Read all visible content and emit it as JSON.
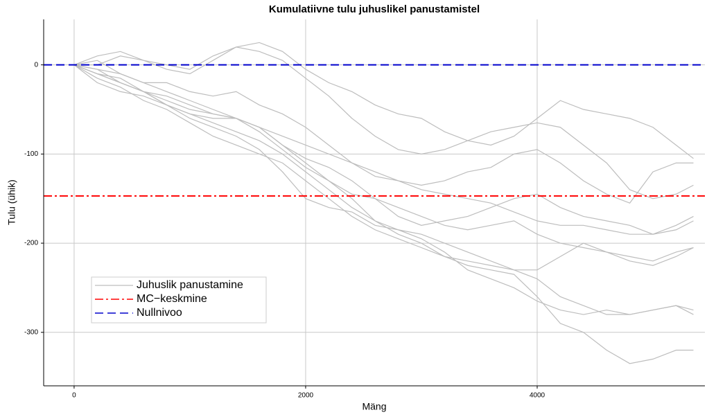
{
  "chart_data": {
    "type": "line",
    "title": "Kumulatiivne tulu juhuslikel panustamistel",
    "x_label": "Mäng",
    "y_label": "Tulu (ühik)",
    "x": [
      0,
      200,
      400,
      600,
      800,
      1000,
      1200,
      1400,
      1600,
      1800,
      2000,
      2200,
      2400,
      2600,
      2800,
      3000,
      3200,
      3400,
      3600,
      3800,
      4000,
      4200,
      4400,
      4600,
      4800,
      5000,
      5200,
      5350
    ],
    "series_name": "Juhuslik panustamine",
    "series_color": "#bdbdbd",
    "series": [
      {
        "values": [
          0,
          10,
          15,
          5,
          0,
          -5,
          10,
          20,
          25,
          15,
          -5,
          -20,
          -30,
          -45,
          -55,
          -60,
          -75,
          -85,
          -90,
          -80,
          -60,
          -40,
          -50,
          -55,
          -60,
          -70,
          -90,
          -105
        ]
      },
      {
        "values": [
          0,
          -5,
          -20,
          -30,
          -40,
          -50,
          -55,
          -60,
          -70,
          -90,
          -110,
          -130,
          -150,
          -175,
          -190,
          -200,
          -215,
          -225,
          -230,
          -235,
          -260,
          -290,
          -300,
          -320,
          -335,
          -330,
          -320,
          -320
        ]
      },
      {
        "values": [
          0,
          -10,
          -15,
          -30,
          -45,
          -60,
          -70,
          -80,
          -95,
          -120,
          -150,
          -160,
          -165,
          -180,
          -185,
          -195,
          -210,
          -230,
          -240,
          -250,
          -265,
          -275,
          -280,
          -275,
          -280,
          -275,
          -270,
          -280
        ]
      },
      {
        "values": [
          0,
          -15,
          -25,
          -40,
          -50,
          -65,
          -80,
          -90,
          -100,
          -110,
          -130,
          -150,
          -170,
          -185,
          -195,
          -205,
          -215,
          -220,
          -225,
          -230,
          -240,
          -260,
          -270,
          -280,
          -280,
          -275,
          -270,
          -275
        ]
      },
      {
        "values": [
          0,
          0,
          10,
          5,
          -5,
          -10,
          5,
          20,
          15,
          5,
          -15,
          -35,
          -60,
          -80,
          -95,
          -100,
          -95,
          -85,
          -75,
          -70,
          -65,
          -70,
          -90,
          -110,
          -140,
          -150,
          -145,
          -135
        ]
      },
      {
        "values": [
          0,
          -5,
          -10,
          -20,
          -30,
          -40,
          -50,
          -60,
          -70,
          -80,
          -90,
          -100,
          -110,
          -120,
          -130,
          -140,
          -145,
          -150,
          -155,
          -165,
          -175,
          -180,
          -180,
          -185,
          -190,
          -190,
          -180,
          -170
        ]
      },
      {
        "values": [
          0,
          -10,
          -20,
          -30,
          -35,
          -45,
          -55,
          -60,
          -75,
          -95,
          -115,
          -130,
          -145,
          -150,
          -160,
          -170,
          -180,
          -185,
          -180,
          -175,
          -190,
          -200,
          -205,
          -210,
          -215,
          -220,
          -210,
          -205
        ]
      },
      {
        "values": [
          0,
          5,
          -10,
          -20,
          -20,
          -30,
          -35,
          -30,
          -45,
          -55,
          -70,
          -90,
          -110,
          -125,
          -130,
          -135,
          -130,
          -120,
          -115,
          -100,
          -95,
          -110,
          -130,
          -145,
          -155,
          -120,
          -110,
          -110
        ]
      },
      {
        "values": [
          0,
          -20,
          -30,
          -35,
          -45,
          -55,
          -60,
          -60,
          -70,
          -90,
          -105,
          -115,
          -130,
          -150,
          -170,
          -180,
          -175,
          -170,
          -160,
          -150,
          -145,
          -160,
          -170,
          -175,
          -180,
          -190,
          -185,
          -175
        ]
      },
      {
        "values": [
          0,
          -10,
          -20,
          -30,
          -45,
          -55,
          -65,
          -75,
          -85,
          -100,
          -120,
          -140,
          -160,
          -175,
          -185,
          -190,
          -200,
          -210,
          -220,
          -230,
          -230,
          -215,
          -200,
          -210,
          -220,
          -225,
          -215,
          -205
        ]
      }
    ],
    "hlines": [
      {
        "name": "MC−keskmine",
        "value": -147,
        "color": "#ff0000",
        "dash": "12 4 3 4"
      },
      {
        "name": "Nullnivoo",
        "value": 0,
        "color": "#0000cc",
        "dash": "12 6"
      }
    ],
    "xlim": [
      -263,
      5449
    ],
    "ylim": [
      -360,
      51
    ],
    "xticks": [
      0,
      2000,
      4000
    ],
    "yticks": [
      -300,
      -200,
      -100,
      0
    ],
    "grid": true
  }
}
